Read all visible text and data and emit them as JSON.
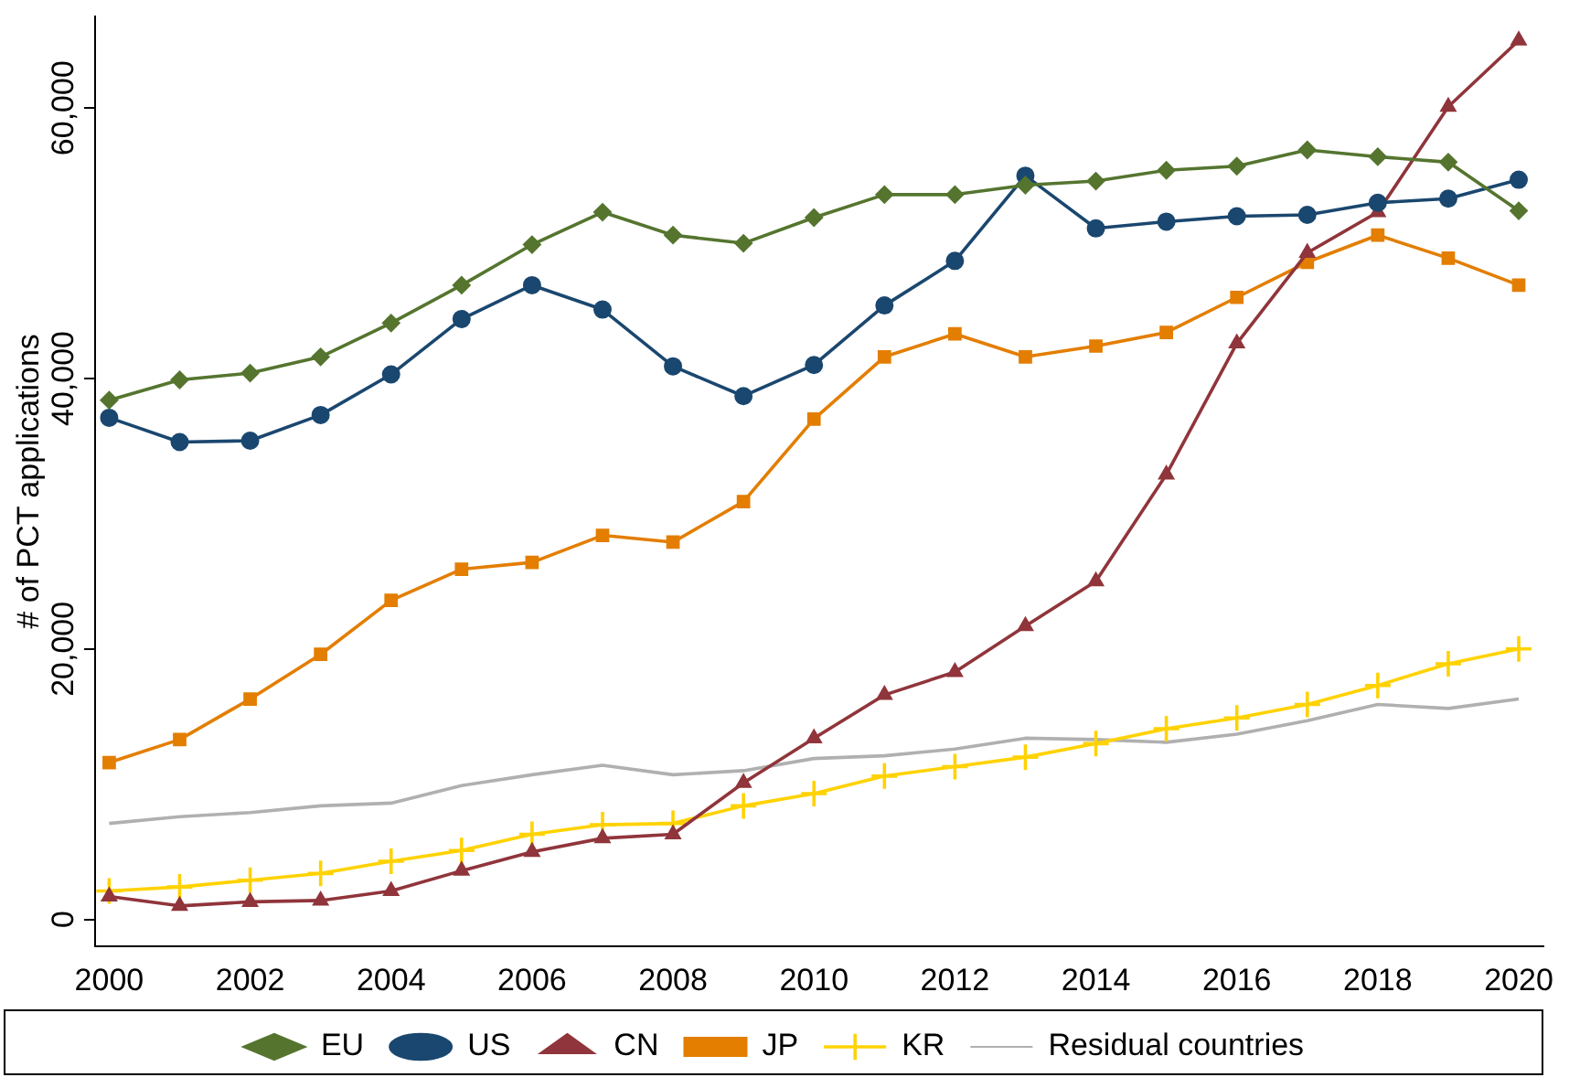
{
  "chart_data": {
    "type": "line",
    "ylabel": "# of PCT applications",
    "x": [
      2000,
      2001,
      2002,
      2003,
      2004,
      2005,
      2006,
      2007,
      2008,
      2009,
      2010,
      2011,
      2012,
      2013,
      2014,
      2015,
      2016,
      2017,
      2018,
      2019,
      2020
    ],
    "xlim": [
      1999.8,
      2020.35
    ],
    "xticks": [
      2000,
      2002,
      2004,
      2006,
      2008,
      2010,
      2012,
      2014,
      2016,
      2018,
      2020
    ],
    "ylim": [
      -2000,
      66800
    ],
    "yticks": [
      0,
      {
        "value": 20000,
        "label": "20,000"
      },
      {
        "value": 40000,
        "label": "40,000"
      },
      {
        "value": 60000,
        "label": "60,000"
      }
    ],
    "grid": false,
    "legend": "bottom",
    "series": [
      {
        "name": "EU",
        "color": "#55752f",
        "marker": "diamond",
        "values": [
          38400,
          39900,
          40400,
          41600,
          44100,
          46900,
          49900,
          52300,
          50600,
          50000,
          51900,
          53600,
          53600,
          54300,
          54600,
          55400,
          55700,
          56900,
          56400,
          56000,
          52400
        ]
      },
      {
        "name": "US",
        "color": "#1a476f",
        "marker": "circle",
        "values": [
          37100,
          35300,
          35400,
          37300,
          40300,
          44400,
          46900,
          45100,
          40900,
          38700,
          41000,
          45400,
          48700,
          55000,
          51100,
          51600,
          52000,
          52100,
          53000,
          53300,
          54700
        ]
      },
      {
        "name": "CN",
        "color": "#90353b",
        "marker": "triangle",
        "values": [
          1700,
          1000,
          1300,
          1400,
          2100,
          3600,
          5000,
          6000,
          6300,
          10100,
          13400,
          16600,
          18300,
          21700,
          25000,
          32900,
          42600,
          49300,
          52300,
          60100,
          65000
        ]
      },
      {
        "name": "JP",
        "color": "#e37e00",
        "marker": "square",
        "values": [
          11600,
          13300,
          16300,
          19600,
          23600,
          25900,
          26400,
          28400,
          27900,
          30900,
          37000,
          41600,
          43300,
          41600,
          42400,
          43400,
          46000,
          48600,
          50600,
          48900,
          46900
        ]
      },
      {
        "name": "KR",
        "color": "#ffd200",
        "marker": "cross",
        "values": [
          2100,
          2400,
          2900,
          3400,
          4300,
          5100,
          6300,
          7000,
          7100,
          8400,
          9300,
          10600,
          11300,
          12000,
          13000,
          14100,
          14900,
          15900,
          17300,
          18900,
          20000
        ]
      },
      {
        "name": "Residual countries",
        "color": "#b0b0b0",
        "marker": "none",
        "values": [
          7100,
          7600,
          7900,
          8400,
          8600,
          9900,
          10700,
          11400,
          10700,
          11000,
          11900,
          12100,
          12600,
          13400,
          13300,
          13100,
          13700,
          14700,
          15900,
          15600,
          16300
        ]
      }
    ]
  }
}
